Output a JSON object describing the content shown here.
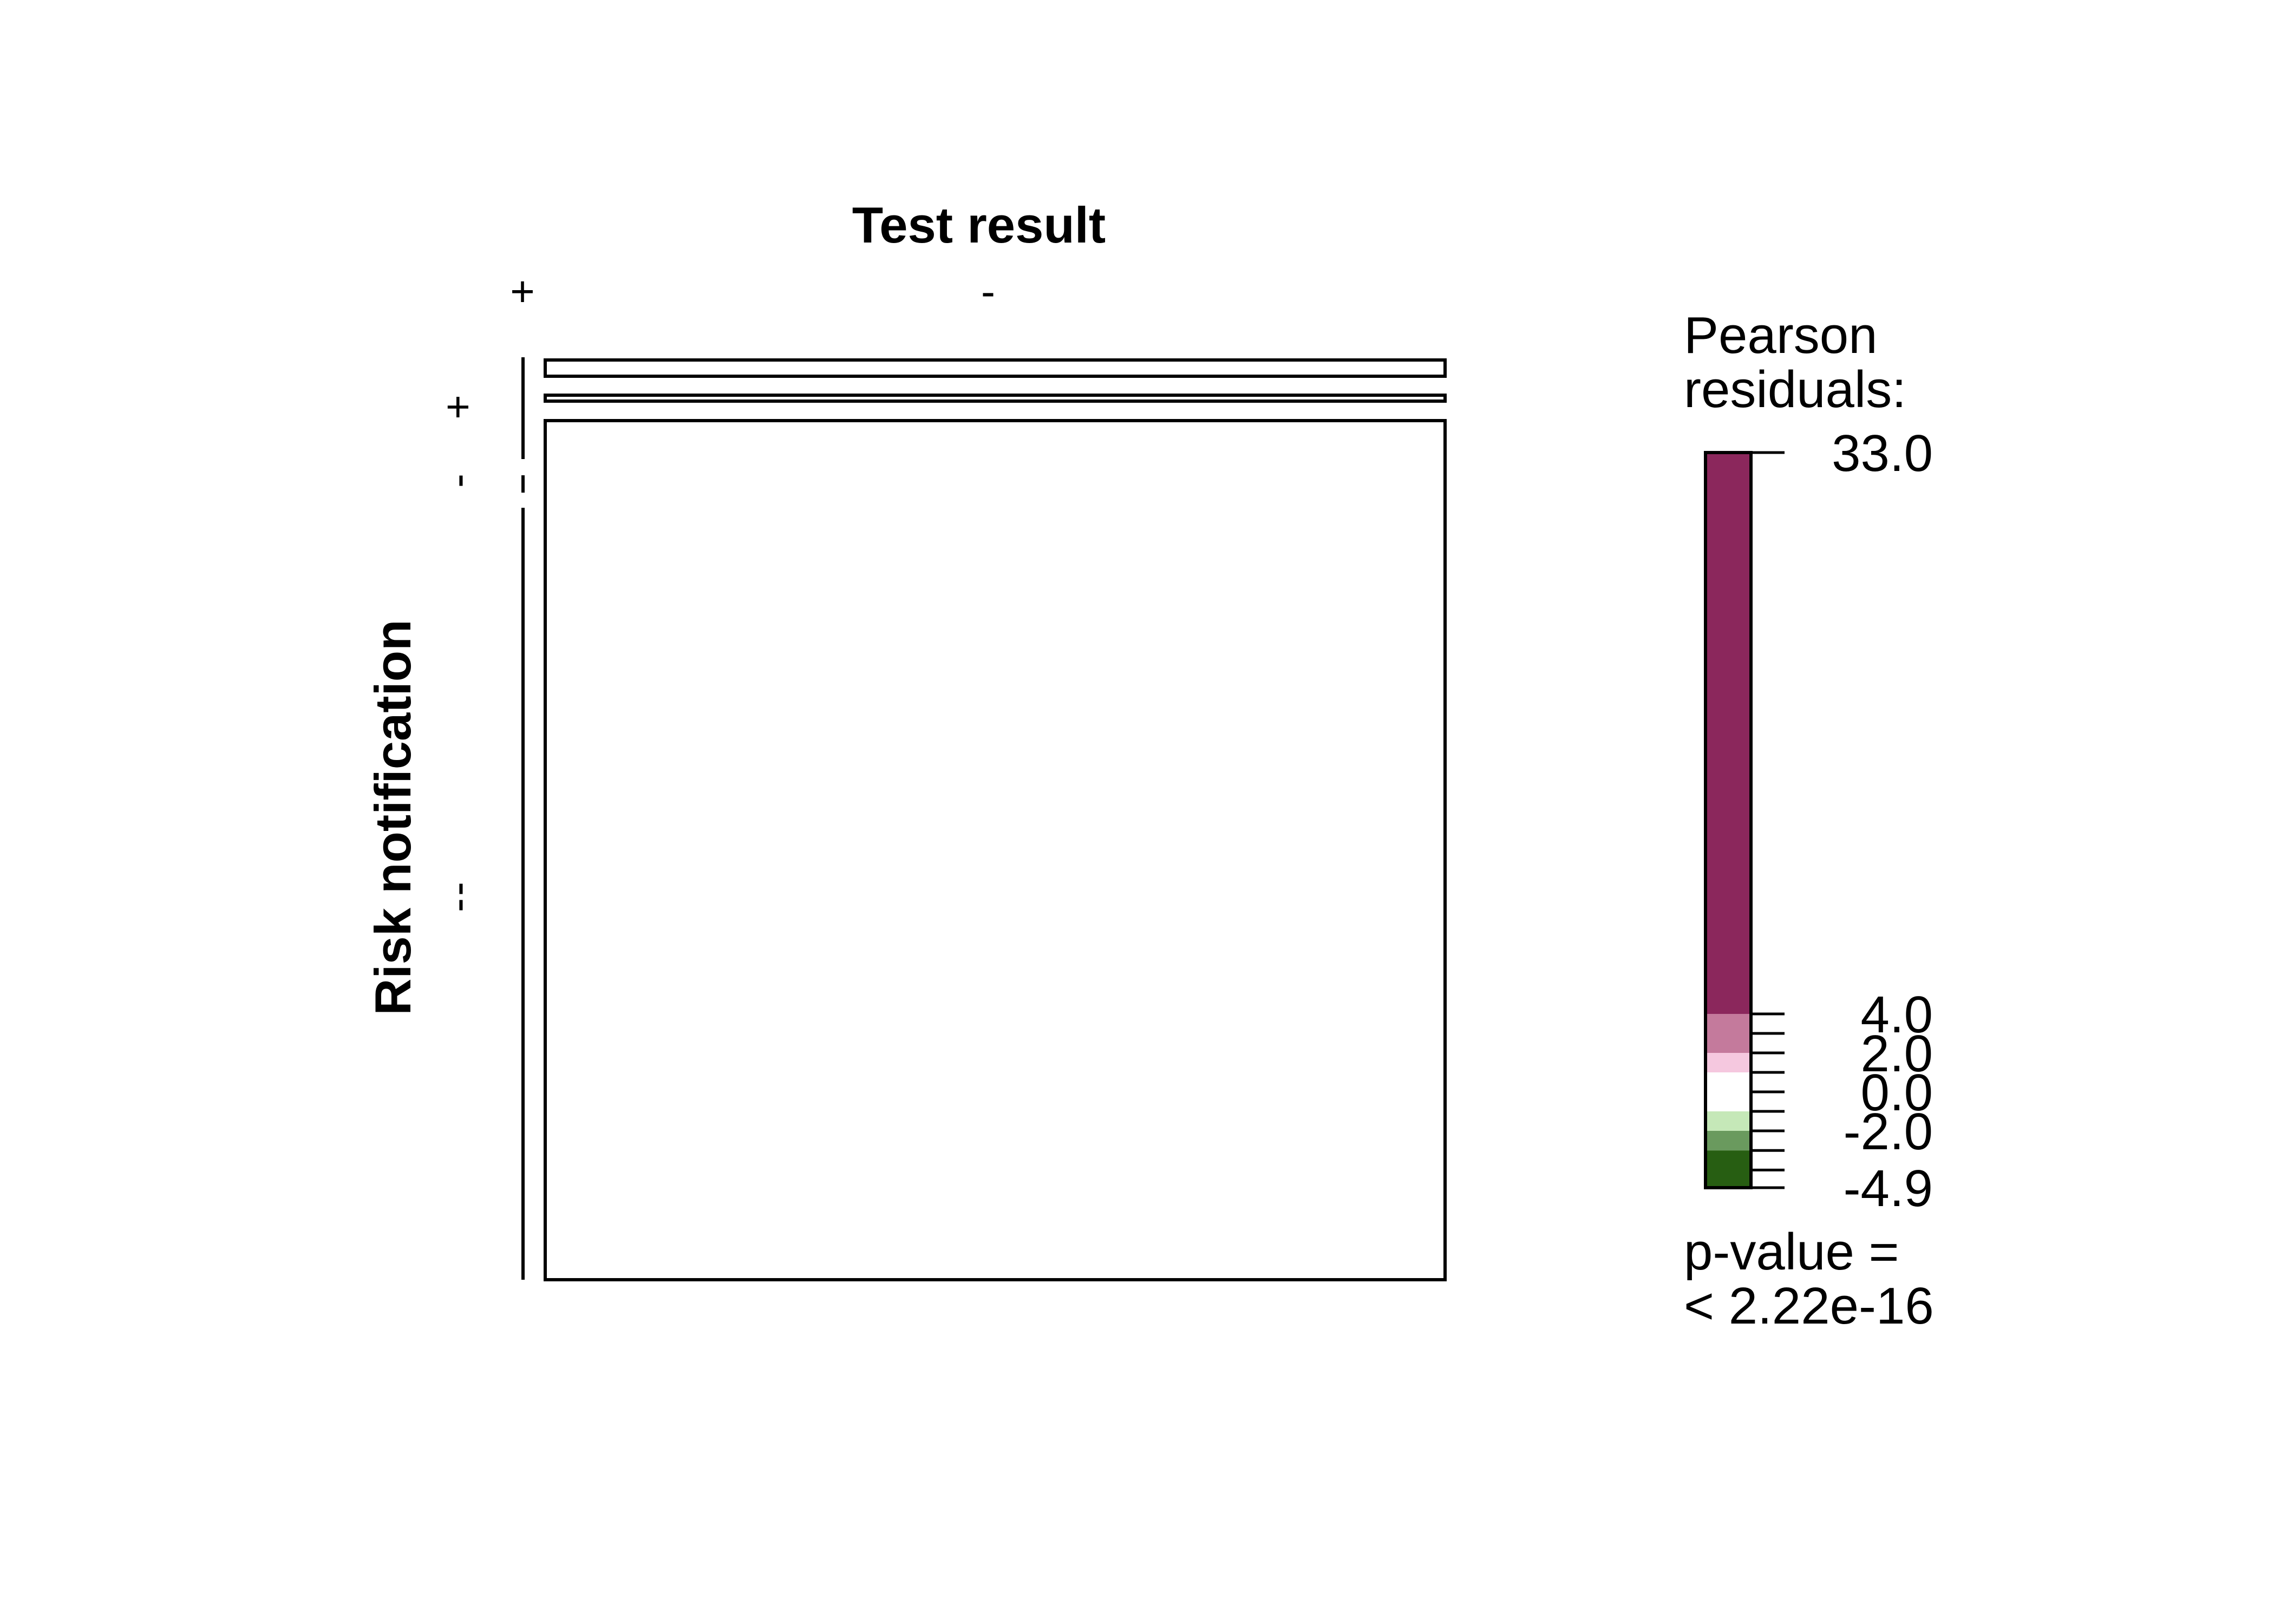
{
  "chart_data": {
    "type": "mosaic",
    "title": "Test result",
    "xlabel": "Test result",
    "ylabel": "Risk notification",
    "x_levels": [
      "+",
      "-"
    ],
    "row_tick_labels": [
      "+",
      "-",
      "-",
      "-"
    ],
    "legend": {
      "title_line1": "Pearson",
      "title_line2": "residuals:",
      "max": 33.0,
      "min": -4.9,
      "ticks": [
        {
          "value": 33.0,
          "label": "33.0"
        },
        {
          "value": 4.0,
          "label": "4.0"
        },
        {
          "value": 2.0,
          "label": "2.0"
        },
        {
          "value": 0.0,
          "label": "0.0"
        },
        {
          "value": -2.0,
          "label": "-2.0"
        },
        {
          "value": -4.9,
          "label": "-4.9"
        }
      ],
      "bands": [
        {
          "from": 4.0,
          "to": 33.0,
          "color": "#8B275C"
        },
        {
          "from": 2.0,
          "to": 4.0,
          "color": "#C47A9C"
        },
        {
          "from": 1.0,
          "to": 2.0,
          "color": "#F5C8DF"
        },
        {
          "from": -1.0,
          "to": 1.0,
          "color": "#FFFFFF"
        },
        {
          "from": -2.0,
          "to": -1.0,
          "color": "#C5E8B8"
        },
        {
          "from": -3.0,
          "to": -2.0,
          "color": "#6A9A5E"
        },
        {
          "from": -4.9,
          "to": -3.0,
          "color": "#275E12"
        }
      ]
    },
    "p_value_line1": "p-value =",
    "p_value_line2": "< 2.22e-16"
  }
}
